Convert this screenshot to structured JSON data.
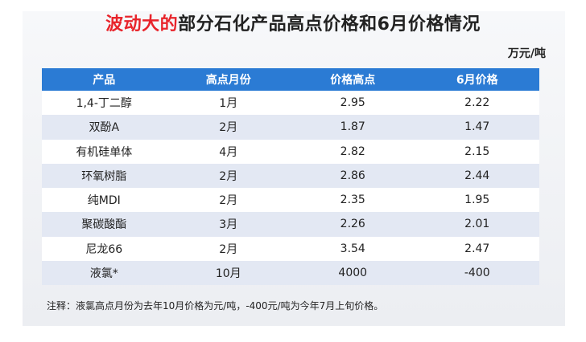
{
  "title": {
    "highlight": "波动大的",
    "rest": "部分石化产品高点价格和6月价格情况"
  },
  "unit": "万元/吨",
  "chart_data": {
    "type": "table",
    "columns": [
      "产品",
      "高点月份",
      "价格高点",
      "6月价格"
    ],
    "rows": [
      [
        "1,4-丁二醇",
        "1月",
        "2.95",
        "2.22"
      ],
      [
        "双酚A",
        "2月",
        "1.87",
        "1.47"
      ],
      [
        "有机硅单体",
        "4月",
        "2.82",
        "2.15"
      ],
      [
        "环氧树脂",
        "2月",
        "2.86",
        "2.44"
      ],
      [
        "纯MDI",
        "2月",
        "2.35",
        "1.95"
      ],
      [
        "聚碳酸酯",
        "3月",
        "2.26",
        "2.01"
      ],
      [
        "尼龙66",
        "2月",
        "3.54",
        "2.47"
      ],
      [
        "液氯*",
        "10月",
        "4000",
        "-400"
      ]
    ]
  },
  "note": "注释：液氯高点月份为去年10月价格为元/吨，-400元/吨为今年7月上旬价格。",
  "colors": {
    "header": "#2b7bd4",
    "highlight": "#e8242b",
    "row_alt": "#e3e8f3"
  }
}
